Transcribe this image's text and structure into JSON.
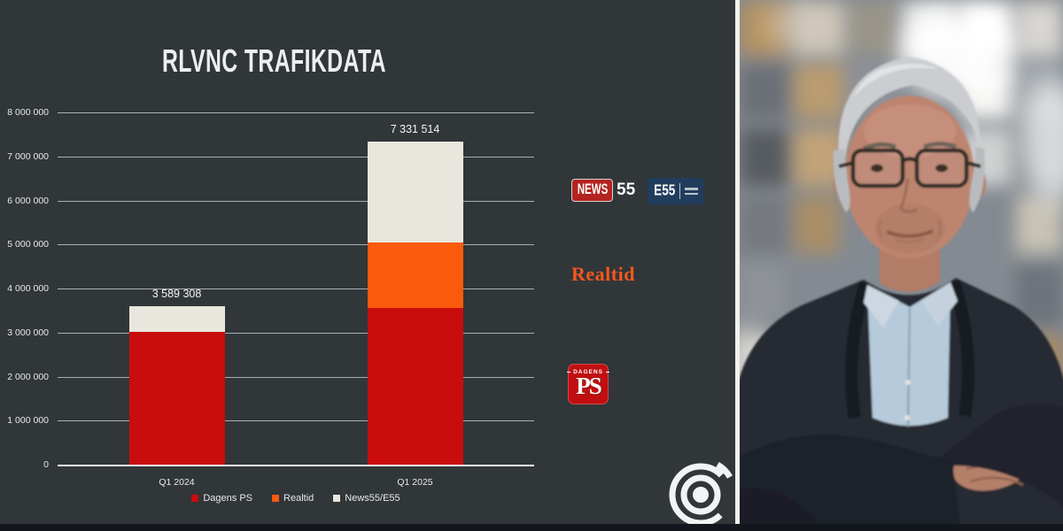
{
  "chart": {
    "title": "RLVNC TRAFIKDATA",
    "panel_bg": "#313639",
    "grid_color": "#d2d8de",
    "text_color": "#e8eaec"
  },
  "chart_data": {
    "type": "bar",
    "subtype": "stacked",
    "title": "RLVNC TRAFIKDATA",
    "categories": [
      "Q1 2024",
      "Q1 2025"
    ],
    "series": [
      {
        "name": "Dagens PS",
        "color": "#c90c0c",
        "values": [
          3020000,
          3560000
        ]
      },
      {
        "name": "Realtid",
        "color": "#fa5a0c",
        "values": [
          0,
          1490000
        ]
      },
      {
        "name": "News55/E55",
        "color": "#e9e7dd",
        "values": [
          569308,
          2281514
        ]
      }
    ],
    "totals": [
      3589308,
      7331514
    ],
    "total_labels": [
      "3 589 308",
      "7 331 514"
    ],
    "ylim": [
      0,
      8000000
    ],
    "ytick_step": 1000000,
    "ytick_labels_top_down": [
      "8 000 000",
      "7 000 000",
      "6 000 000",
      "5 000 000",
      "4 000 000",
      "3 000 000",
      "2 000 000",
      "1 000 000",
      "0"
    ],
    "grid": true,
    "legend_position": "bottom"
  },
  "logos": {
    "news55": {
      "box_text": "NEWS",
      "suffix": "55",
      "box_color": "#b42320"
    },
    "e55": {
      "text": "E55",
      "box_color": "#213d5e"
    },
    "realtid": {
      "text": "Realtid",
      "color": "#f4581c"
    },
    "dagens_ps": {
      "top": "DAGENS",
      "main": "PS",
      "box_color": "#c00f10"
    }
  }
}
